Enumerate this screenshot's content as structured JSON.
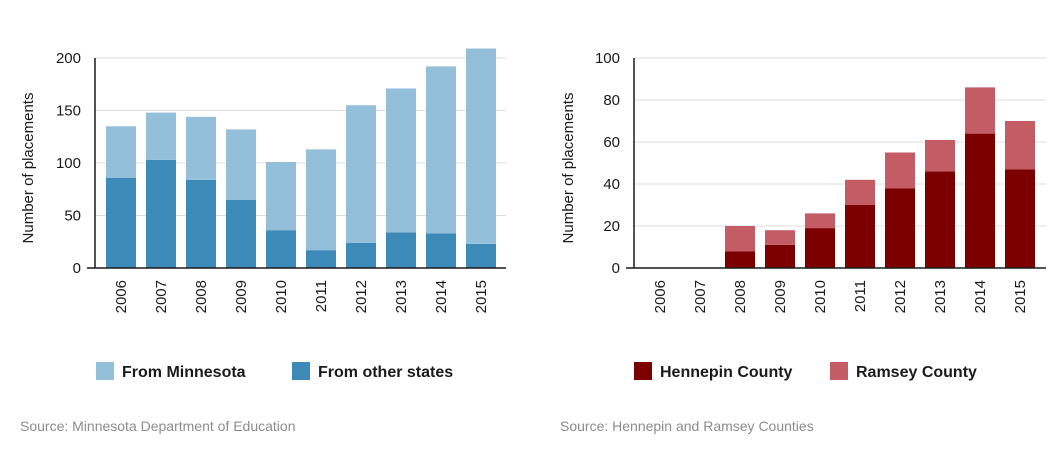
{
  "chart_data": [
    {
      "type": "bar",
      "stacked": true,
      "categories": [
        "2006",
        "2007",
        "2008",
        "2009",
        "2010",
        "2011",
        "2012",
        "2013",
        "2014",
        "2015"
      ],
      "series": [
        {
          "name": "From other states",
          "color": "#3d8ab8",
          "values": [
            86,
            103,
            84,
            65,
            36,
            17,
            24,
            34,
            33,
            23
          ]
        },
        {
          "name": "From Minnesota",
          "color": "#93bfdb",
          "values": [
            49,
            45,
            60,
            67,
            65,
            96,
            131,
            137,
            159,
            186
          ]
        }
      ],
      "legend_order": [
        "From Minnesota",
        "From other states"
      ],
      "ylabel": "Number of placements",
      "ylim": [
        0,
        200
      ],
      "yticks": [
        0,
        50,
        100,
        150,
        200
      ],
      "grid": true,
      "legend": "bottom",
      "source": "Source: Minnesota Department of Education"
    },
    {
      "type": "bar",
      "stacked": true,
      "categories": [
        "2006",
        "2007",
        "2008",
        "2009",
        "2010",
        "2011",
        "2012",
        "2013",
        "2014",
        "2015"
      ],
      "series": [
        {
          "name": "Hennepin County",
          "color": "#7d0000",
          "values": [
            0,
            0,
            8,
            11,
            19,
            30,
            38,
            46,
            64,
            47
          ]
        },
        {
          "name": "Ramsey County",
          "color": "#c45c66",
          "values": [
            0,
            0,
            12,
            7,
            7,
            12,
            17,
            15,
            22,
            23
          ]
        }
      ],
      "legend_order": [
        "Hennepin County",
        "Ramsey County"
      ],
      "ylabel": "Number of placements",
      "ylim": [
        0,
        100
      ],
      "yticks": [
        0,
        20,
        40,
        60,
        80,
        100
      ],
      "grid": true,
      "legend": "bottom",
      "source": "Source: Hennepin and Ramsey Counties"
    }
  ]
}
